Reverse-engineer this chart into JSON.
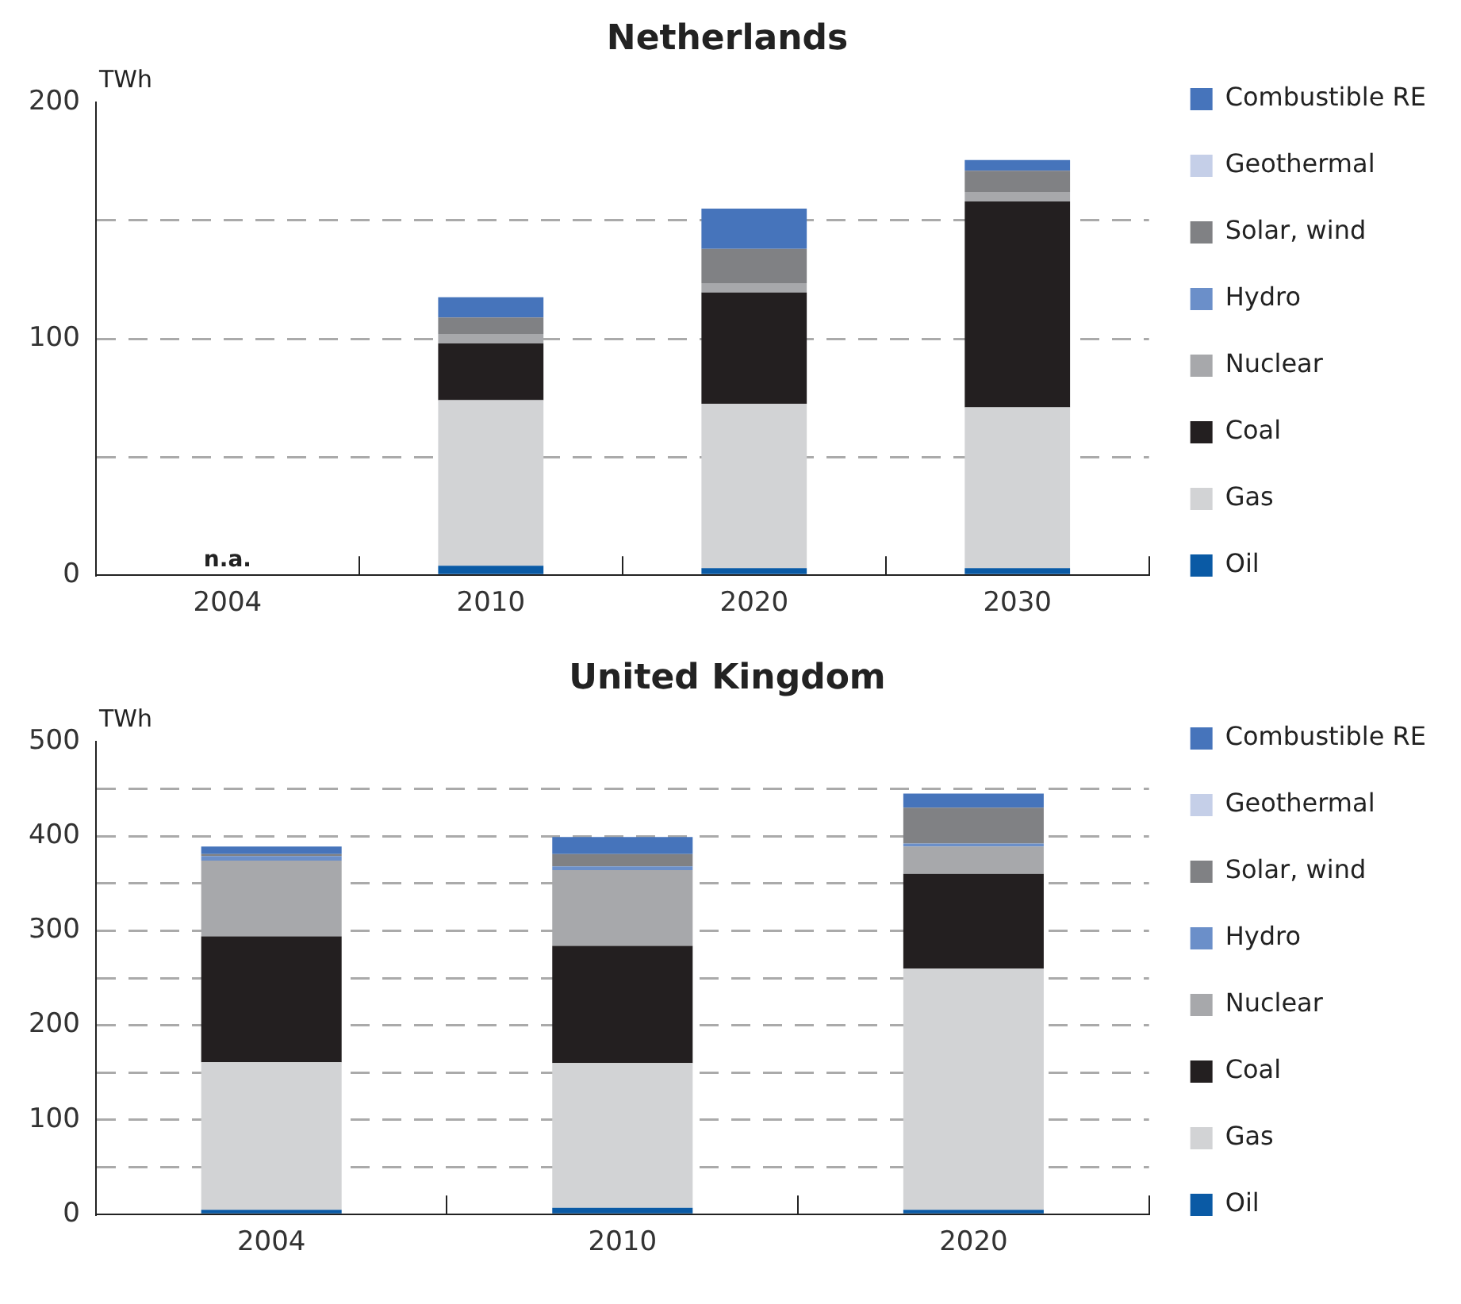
{
  "chart_data": [
    {
      "type": "bar",
      "title": "Netherlands",
      "ylabel": "TWh",
      "categories": [
        "2004",
        "2010",
        "2020",
        "2030"
      ],
      "stacked": true,
      "legend": "right",
      "grid": "y",
      "ylim": [
        0,
        200
      ],
      "yticks": [
        0,
        {
          "value": 50,
          "label": null
        },
        100,
        {
          "value": 150,
          "label": null
        },
        200
      ],
      "annotations": [
        "n.a."
      ],
      "series": [
        {
          "name": "Oil",
          "color": "#0a5aa5",
          "values": [
            null,
            4,
            3,
            3
          ]
        },
        {
          "name": "Gas",
          "color": "#d2d3d5",
          "values": [
            null,
            70,
            69.5,
            68
          ]
        },
        {
          "name": "Coal",
          "color": "#231f20",
          "values": [
            null,
            24,
            47,
            87
          ]
        },
        {
          "name": "Nuclear",
          "color": "#a7a8ab",
          "values": [
            null,
            4,
            4,
            4
          ]
        },
        {
          "name": "Hydro",
          "color": "#6b8fc9",
          "values": [
            null,
            0,
            0,
            0
          ]
        },
        {
          "name": "Solar, wind",
          "color": "#808184",
          "values": [
            null,
            7,
            14.5,
            9
          ]
        },
        {
          "name": "Geothermal",
          "color": "#c5cfe8",
          "values": [
            null,
            0,
            0,
            0
          ]
        },
        {
          "name": "Combustible RE",
          "color": "#4674bb",
          "values": [
            null,
            8.5,
            17,
            4.5
          ]
        }
      ]
    },
    {
      "type": "bar",
      "title": "United Kingdom",
      "ylabel": "TWh",
      "categories": [
        "2004",
        "2010",
        "2020"
      ],
      "stacked": true,
      "legend": "right",
      "grid": "y",
      "ylim": [
        0,
        500
      ],
      "yticks": [
        0,
        {
          "value": 50,
          "label": null
        },
        100,
        {
          "value": 150,
          "label": null
        },
        200,
        {
          "value": 250,
          "label": null
        },
        300,
        {
          "value": 350,
          "label": null
        },
        400,
        {
          "value": 450,
          "label": null
        },
        500
      ],
      "series": [
        {
          "name": "Oil",
          "color": "#0a5aa5",
          "values": [
            5,
            7,
            5
          ]
        },
        {
          "name": "Gas",
          "color": "#d2d3d5",
          "values": [
            156,
            153,
            255
          ]
        },
        {
          "name": "Coal",
          "color": "#231f20",
          "values": [
            133,
            124,
            100
          ]
        },
        {
          "name": "Nuclear",
          "color": "#a7a8ab",
          "values": [
            80,
            80,
            29
          ]
        },
        {
          "name": "Hydro",
          "color": "#6b8fc9",
          "values": [
            5,
            4,
            3
          ]
        },
        {
          "name": "Solar, wind",
          "color": "#808184",
          "values": [
            2,
            13,
            38
          ]
        },
        {
          "name": "Geothermal",
          "color": "#c5cfe8",
          "values": [
            0,
            0,
            0
          ]
        },
        {
          "name": "Combustible RE",
          "color": "#4674bb",
          "values": [
            8,
            18,
            15
          ]
        }
      ]
    }
  ]
}
